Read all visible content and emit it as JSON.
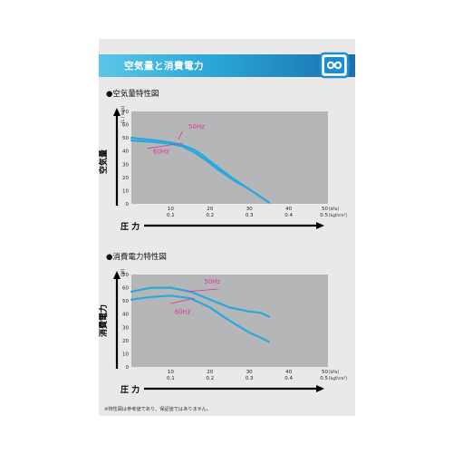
{
  "header": {
    "title": "空気量と消費電力"
  },
  "logo": {
    "icon": "blower-logo-icon",
    "color": "#1a8fd0"
  },
  "colors": {
    "curve": "#2aa8dc",
    "label": "#d43a9a",
    "plot_bg": "#b5b6b8",
    "header_start": "#5bc6e6",
    "header_end": "#1a6fb0"
  },
  "chart_data": [
    {
      "type": "line",
      "title": "●空気量特性図",
      "ylabel": "空気量",
      "yunit": "[L / min]",
      "xlabel": "圧 力",
      "xunit_kpa": "[kPa]",
      "xunit_kgf": "[kgf/cm²]",
      "ylim": [
        0,
        70
      ],
      "xlim": [
        0,
        50
      ],
      "yticks": [
        "0",
        "10",
        "20",
        "30",
        "40",
        "50",
        "60",
        "70"
      ],
      "xticks_kpa": [
        "10",
        "20",
        "30",
        "40",
        "50"
      ],
      "xticks_kgf": [
        "0.1",
        "0.2",
        "0.3",
        "0.4",
        "0.5"
      ],
      "series": [
        {
          "name": "50Hz",
          "x": [
            0,
            5,
            10,
            13,
            16,
            18,
            21,
            25,
            30,
            35
          ],
          "y": [
            50,
            48.5,
            46.5,
            44.5,
            41,
            37,
            30,
            21,
            11,
            1
          ]
        },
        {
          "name": "60Hz",
          "x": [
            0,
            5,
            10,
            13,
            16,
            19,
            22,
            26,
            30,
            35
          ],
          "y": [
            48,
            47,
            45.5,
            43.5,
            39,
            33,
            26,
            18,
            11,
            1
          ]
        }
      ]
    },
    {
      "type": "line",
      "title": "●消費電力特性図",
      "ylabel": "消費電力",
      "yunit": "[W]",
      "xlabel": "圧 力",
      "xunit_kpa": "[kPa]",
      "xunit_kgf": "[kgf/cm²]",
      "ylim": [
        0,
        70
      ],
      "xlim": [
        0,
        50
      ],
      "yticks": [
        "0",
        "10",
        "20",
        "30",
        "40",
        "50",
        "60",
        "70"
      ],
      "xticks_kpa": [
        "10",
        "20",
        "30",
        "40",
        "50"
      ],
      "xticks_kgf": [
        "0.1",
        "0.2",
        "0.3",
        "0.4",
        "0.5"
      ],
      "series": [
        {
          "name": "50Hz",
          "x": [
            0,
            5,
            10,
            15,
            20,
            25,
            30,
            33,
            35
          ],
          "y": [
            57,
            60,
            60,
            57,
            51,
            45,
            42,
            41,
            38
          ]
        },
        {
          "name": "60Hz",
          "x": [
            0,
            5,
            10,
            15,
            20,
            25,
            30,
            33,
            35
          ],
          "y": [
            51,
            53,
            54,
            52,
            45,
            35,
            26,
            22,
            19
          ]
        }
      ]
    }
  ],
  "footnote": "※特性図は参考値であり、保証値ではありません。"
}
